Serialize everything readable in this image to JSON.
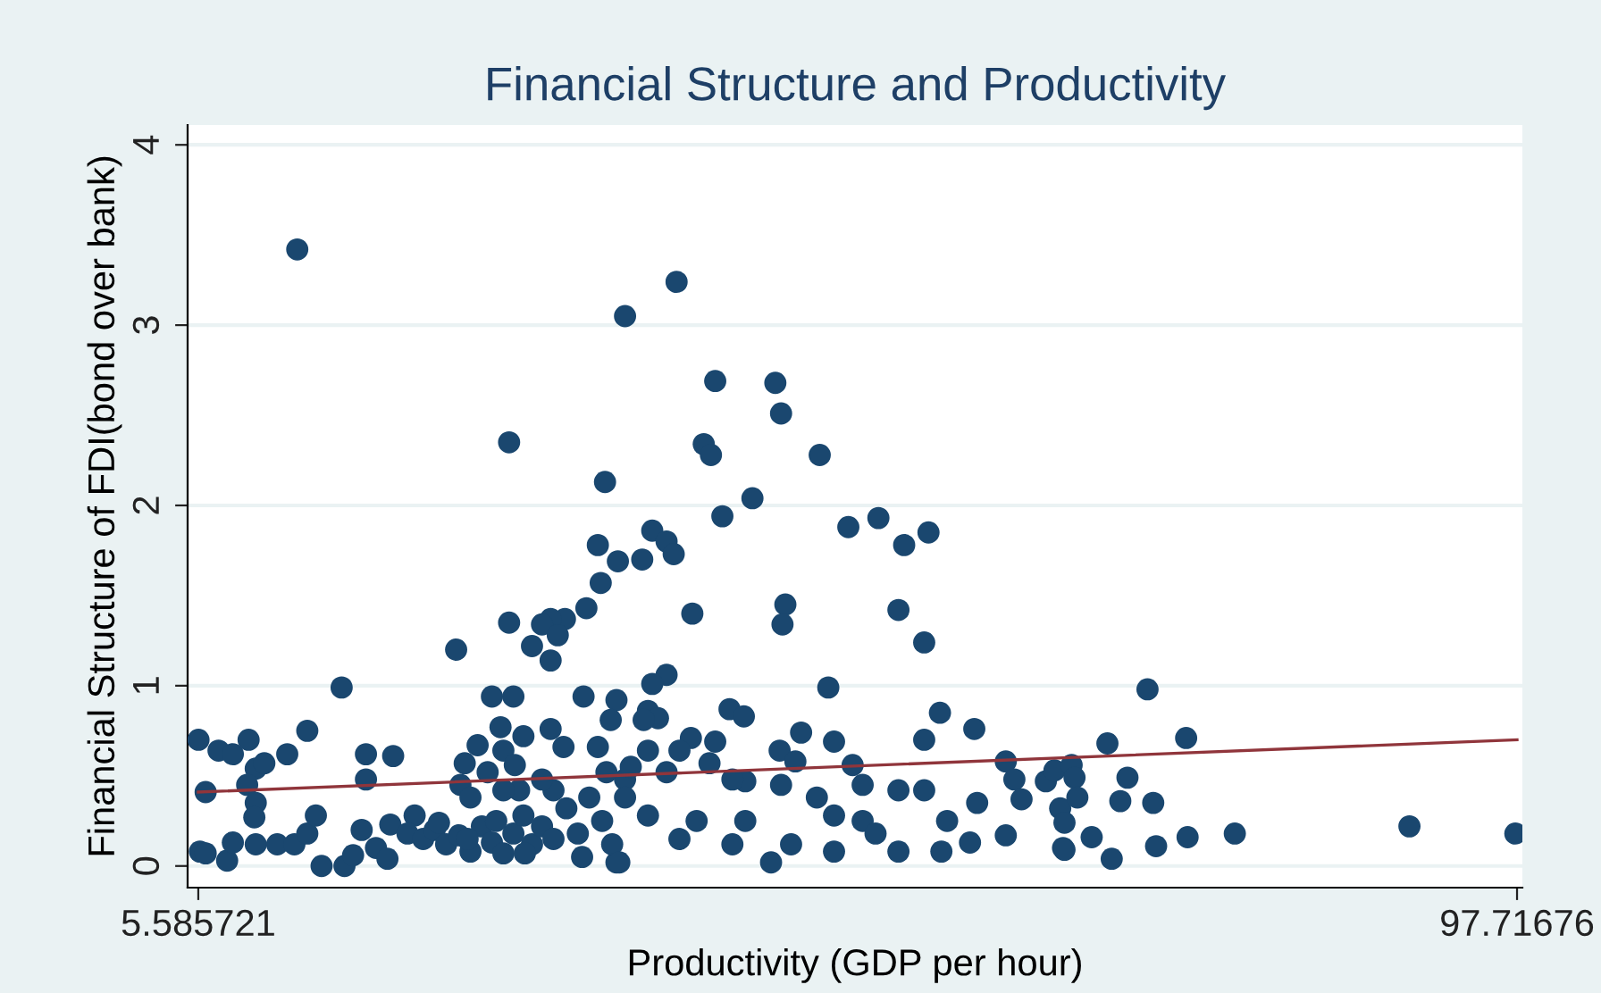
{
  "chart_data": {
    "type": "scatter",
    "title": "Financial Structure and Productivity",
    "xlabel": "Productivity (GDP per hour)",
    "ylabel": "Financial Structure of FDI(bond over bank)",
    "xlim": [
      4.84,
      98.09
    ],
    "ylim": [
      -0.12,
      4.11
    ],
    "xticks": [
      5.585721,
      97.71676
    ],
    "yticks": [
      0,
      1,
      2,
      3,
      4
    ],
    "grid": "y",
    "series": [
      {
        "marker": "circle",
        "color": "#1a476f",
        "x": [
          12.5,
          39.0,
          35.4,
          41.7,
          45.9,
          46.3,
          27.3,
          40.9,
          41.4,
          49.0,
          44.3,
          34.0,
          42.2,
          53.1,
          51.0,
          56.6,
          54.9,
          37.3,
          38.3,
          38.8,
          36.6,
          34.9,
          33.5,
          33.7,
          32.7,
          31.2,
          30.2,
          29.6,
          30.7,
          27.3,
          28.9,
          23.6,
          30.2,
          40.1,
          46.6,
          46.4,
          54.5,
          56.3,
          15.6,
          38.3,
          49.6,
          71.9,
          74.6,
          69.1,
          5.6,
          7.0,
          8.0,
          9.1,
          9.6,
          10.2,
          11.8,
          13.2,
          9.0,
          9.6,
          9.5,
          6.1,
          5.7,
          6.1,
          7.6,
          8.0,
          9.6,
          11.1,
          12.3,
          13.2,
          13.8,
          14.2,
          15.8,
          16.4,
          17.0,
          17.3,
          17.3,
          19.2,
          18.0,
          18.8,
          19.0,
          20.7,
          20.2,
          21.3,
          22.1,
          22.9,
          23.8,
          24.6,
          25.4,
          26.1,
          26.9,
          27.6,
          28.3,
          28.9,
          29.6,
          30.4,
          31.3,
          32.1,
          32.9,
          33.8,
          34.8,
          34.5,
          35.4,
          24.2,
          25.1,
          26.7,
          26.9,
          27.6,
          26.1,
          27.7,
          28.3,
          30.2,
          31.1,
          32.5,
          33.5,
          34.8,
          34.4,
          23.9,
          25.8,
          28.0,
          29.6,
          24.6,
          26.9,
          22.4,
          24.4,
          26.4,
          28.4,
          30.4,
          32.4,
          37.3,
          37.0,
          37.7,
          36.7,
          42.7,
          43.7,
          47.7,
          50.0,
          46.2,
          47.3,
          57.4,
          59.8,
          56.3,
          51.3,
          62.0,
          40.0,
          39.2,
          41.7,
          37.0,
          41.3,
          43.8,
          46.3,
          48.8,
          50.0,
          50.0,
          52.0,
          52.0,
          52.9,
          54.5,
          54.5,
          56.3,
          57.9,
          57.5,
          59.5,
          60.0,
          62.0,
          62.6,
          63.1,
          64.8,
          65.8,
          66.0,
          45.6,
          35.0,
          42.9,
          47.0,
          43.8,
          39.2,
          40.4,
          37.0,
          35.4,
          42.9,
          38.3,
          34.1,
          35.8,
          65.4,
          66.6,
          66.8,
          67.0,
          66.1,
          66.1,
          68.0,
          69.4,
          70.5,
          70.0,
          72.3,
          72.5,
          74.7,
          78.0,
          90.2,
          97.6
        ],
        "values": [
          3.42,
          3.24,
          3.05,
          2.69,
          2.68,
          2.51,
          2.35,
          2.34,
          2.28,
          2.28,
          2.04,
          2.13,
          1.94,
          1.93,
          1.88,
          1.85,
          1.78,
          1.86,
          1.8,
          1.73,
          1.7,
          1.69,
          1.78,
          1.57,
          1.43,
          1.37,
          1.37,
          1.34,
          1.28,
          1.35,
          1.22,
          1.2,
          1.14,
          1.4,
          1.45,
          1.34,
          1.42,
          1.24,
          0.99,
          1.06,
          0.99,
          0.98,
          0.71,
          0.68,
          0.7,
          0.64,
          0.62,
          0.7,
          0.54,
          0.57,
          0.62,
          0.75,
          0.45,
          0.35,
          0.27,
          0.41,
          0.08,
          0.07,
          0.03,
          0.13,
          0.12,
          0.12,
          0.12,
          0.18,
          0.28,
          0.0,
          0.0,
          0.06,
          0.2,
          0.62,
          0.48,
          0.61,
          0.1,
          0.04,
          0.23,
          0.28,
          0.18,
          0.15,
          0.2,
          0.12,
          0.17,
          0.08,
          0.22,
          0.13,
          0.07,
          0.18,
          0.28,
          0.12,
          0.22,
          0.42,
          0.32,
          0.18,
          0.38,
          0.25,
          0.02,
          0.12,
          0.48,
          0.57,
          0.67,
          0.77,
          0.64,
          0.94,
          0.94,
          0.56,
          0.72,
          0.76,
          0.66,
          0.94,
          0.66,
          0.92,
          0.81,
          0.45,
          0.52,
          0.42,
          0.48,
          0.38,
          0.42,
          0.24,
          0.15,
          0.25,
          0.07,
          0.15,
          0.05,
          1.01,
          0.86,
          0.82,
          0.81,
          0.87,
          0.83,
          0.74,
          0.69,
          0.64,
          0.58,
          0.85,
          0.76,
          0.7,
          0.56,
          0.58,
          0.71,
          0.64,
          0.69,
          0.64,
          0.57,
          0.47,
          0.45,
          0.38,
          0.28,
          0.08,
          0.45,
          0.25,
          0.18,
          0.42,
          0.08,
          0.42,
          0.25,
          0.08,
          0.13,
          0.35,
          0.17,
          0.48,
          0.37,
          0.47,
          0.32,
          0.1,
          0.02,
          0.02,
          0.12,
          0.12,
          0.25,
          0.15,
          0.25,
          0.28,
          0.38,
          0.48,
          0.52,
          0.52,
          0.55,
          0.53,
          0.56,
          0.49,
          0.38,
          0.24,
          0.09,
          0.16,
          0.04,
          0.49,
          0.36,
          0.35,
          0.11,
          0.16,
          0.18,
          0.22,
          0.18
        ]
      },
      {
        "type": "line",
        "color": "#90353b",
        "x": [
          5.585721,
          97.71676
        ],
        "values": [
          0.41,
          0.7
        ]
      }
    ]
  }
}
